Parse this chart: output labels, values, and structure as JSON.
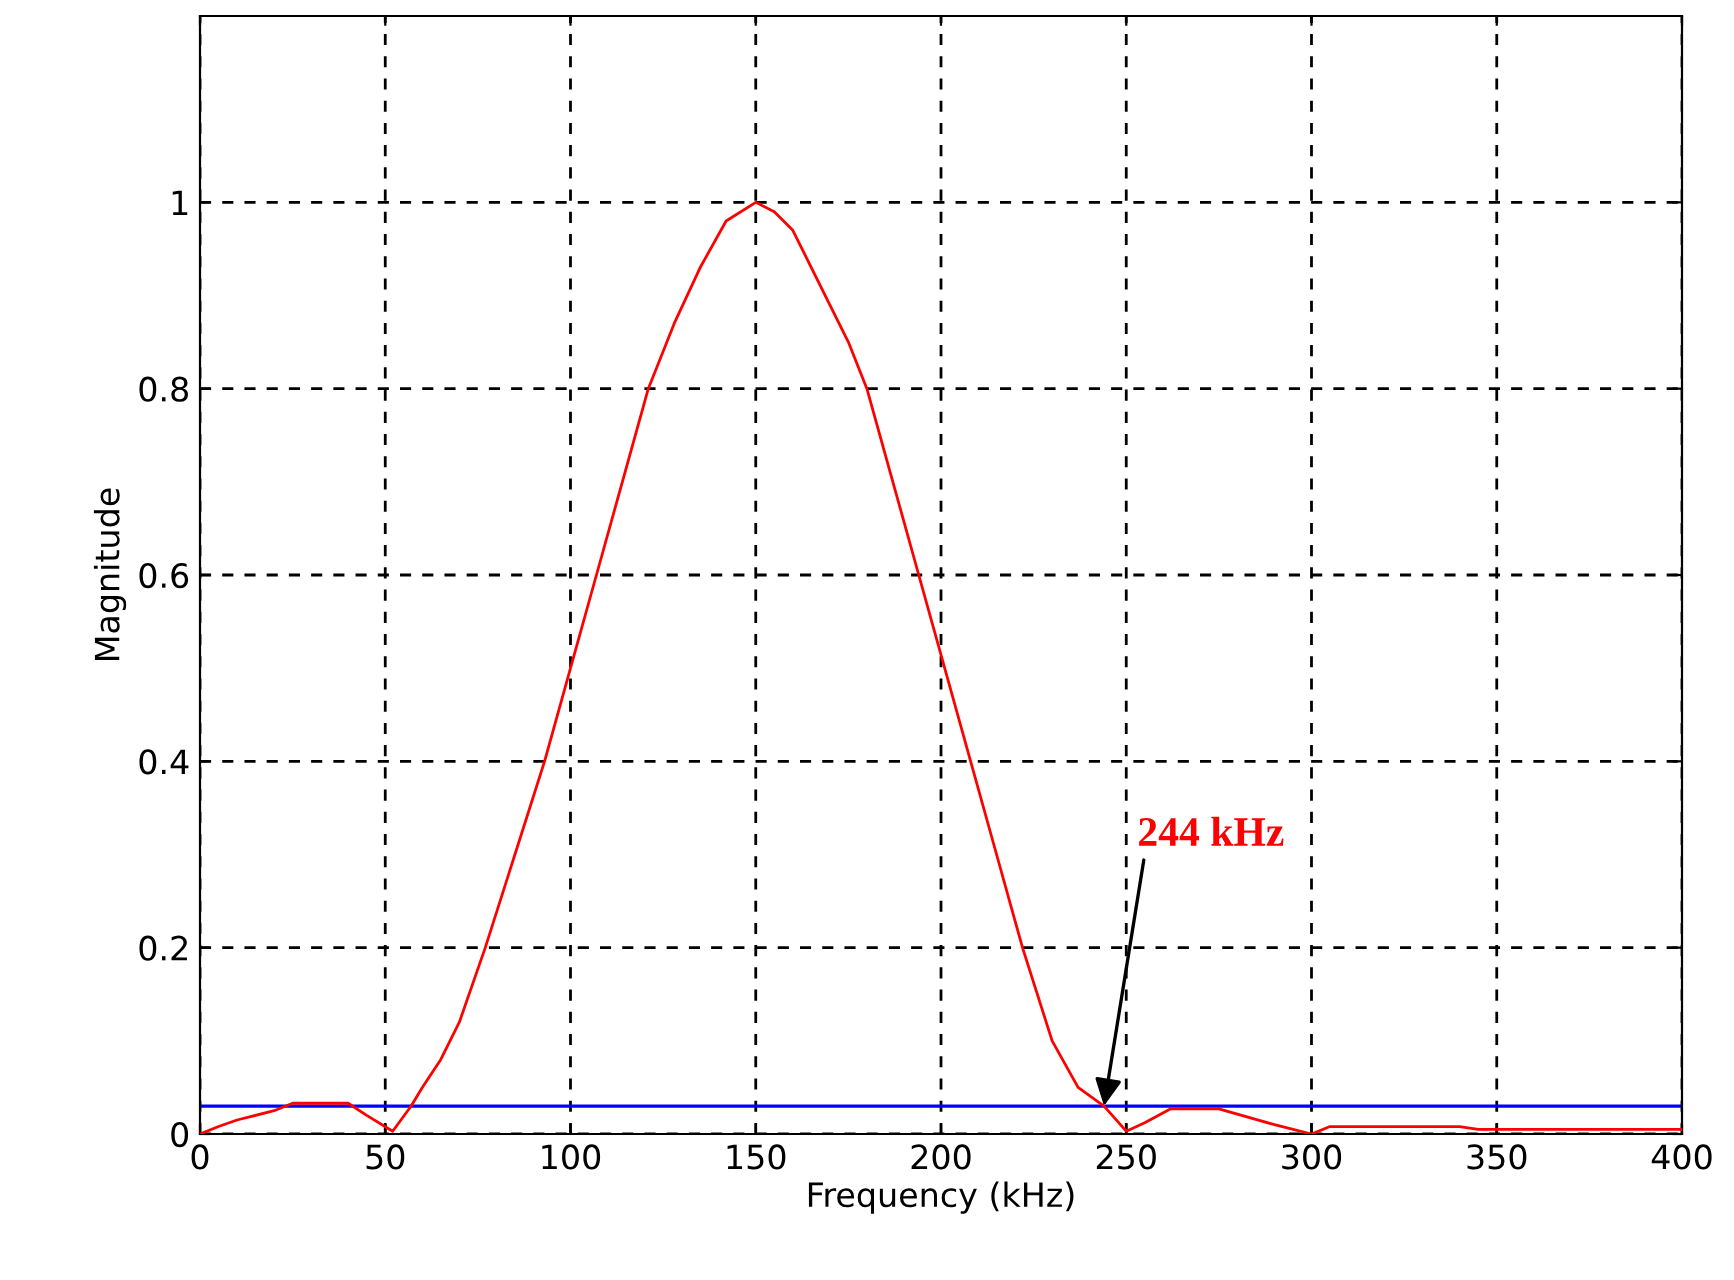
{
  "chart_data": {
    "type": "line",
    "xlabel": "Frequency (kHz)",
    "ylabel": "Magnitude",
    "x": [
      0,
      5,
      10,
      20,
      25,
      40,
      45,
      52,
      57,
      60,
      65,
      70,
      77,
      85,
      93,
      100,
      107,
      114,
      121,
      128,
      135,
      142,
      150,
      155,
      160,
      165,
      170,
      175,
      180,
      187,
      194,
      201,
      208,
      215,
      222,
      230,
      237,
      244,
      250,
      255,
      262,
      275,
      290,
      300,
      305,
      340,
      345,
      400
    ],
    "series": [
      {
        "color": "#ff0000",
        "values": [
          0,
          0.008,
          0.015,
          0.025,
          0.033,
          0.033,
          0.02,
          0.003,
          0.03,
          0.05,
          0.08,
          0.12,
          0.2,
          0.3,
          0.4,
          0.5,
          0.6,
          0.7,
          0.8,
          0.87,
          0.93,
          0.98,
          1.0,
          0.99,
          0.97,
          0.93,
          0.89,
          0.85,
          0.8,
          0.7,
          0.6,
          0.5,
          0.4,
          0.3,
          0.2,
          0.1,
          0.05,
          0.03,
          0.003,
          0.012,
          0.027,
          0.027,
          0.01,
          0.0,
          0.008,
          0.008,
          0.005,
          0.005
        ]
      }
    ],
    "xlim": [
      0,
      400
    ],
    "xticks": [
      0,
      50,
      100,
      150,
      200,
      250,
      300,
      350,
      400
    ],
    "ylim": [
      0,
      1.2
    ],
    "yticks": [
      0,
      0.2,
      0.4,
      0.6,
      0.8,
      1
    ],
    "grid": true,
    "line_style": "solid",
    "marker": "none",
    "ref_lines": [
      {
        "axis": "y",
        "value": 0.03,
        "color": "#0000ff"
      }
    ],
    "annotations": [
      {
        "text": "244 kHz",
        "x": 244,
        "y": 0.03
      }
    ]
  }
}
